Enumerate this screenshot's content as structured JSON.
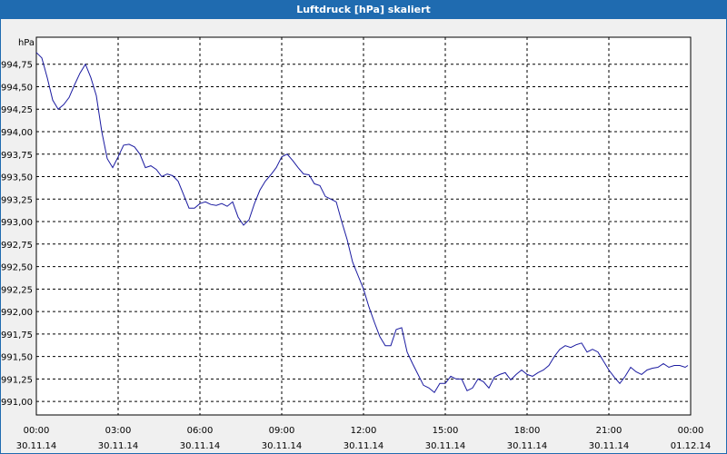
{
  "window": {
    "title": "Luftdruck [hPa] skaliert"
  },
  "colors": {
    "titlebar": "#1f6bb0",
    "line": "#1a1aa0",
    "grid": "#000000",
    "background": "#ffffff"
  },
  "chart_data": {
    "type": "line",
    "title": "Luftdruck [hPa] skaliert",
    "ylabel": "hPa",
    "xlabel": "",
    "grid": true,
    "ylim": [
      990.85,
      995.05
    ],
    "yticks": [
      991.0,
      991.25,
      991.5,
      991.75,
      992.0,
      992.25,
      992.5,
      992.75,
      993.0,
      993.25,
      993.5,
      993.75,
      994.0,
      994.25,
      994.5,
      994.75
    ],
    "ytick_labels": [
      "991,00",
      "991,25",
      "991,50",
      "991,75",
      "992,00",
      "992,25",
      "992,50",
      "992,75",
      "993,00",
      "993,25",
      "993,50",
      "993,75",
      "994,00",
      "994,25",
      "994,50",
      "994,75"
    ],
    "xlim": [
      0,
      24
    ],
    "xticks": [
      0,
      3,
      6,
      9,
      12,
      15,
      18,
      21,
      24
    ],
    "xtick_labels": [
      {
        "time": "00:00",
        "date": "30.11.14"
      },
      {
        "time": "03:00",
        "date": "30.11.14"
      },
      {
        "time": "06:00",
        "date": "30.11.14"
      },
      {
        "time": "09:00",
        "date": "30.11.14"
      },
      {
        "time": "12:00",
        "date": "30.11.14"
      },
      {
        "time": "15:00",
        "date": "30.11.14"
      },
      {
        "time": "18:00",
        "date": "30.11.14"
      },
      {
        "time": "21:00",
        "date": "30.11.14"
      },
      {
        "time": "00:00",
        "date": "01.12.14"
      }
    ],
    "series": [
      {
        "x": [
          0,
          0.2,
          0.4,
          0.6,
          0.8,
          1.0,
          1.2,
          1.4,
          1.6,
          1.8,
          2.0,
          2.2,
          2.4,
          2.6,
          2.8,
          3.0,
          3.2,
          3.4,
          3.6,
          3.8,
          4.0,
          4.2,
          4.4,
          4.6,
          4.8,
          5.0,
          5.2,
          5.4,
          5.6,
          5.8,
          6.0,
          6.2,
          6.4,
          6.6,
          6.8,
          7.0,
          7.2,
          7.4,
          7.6,
          7.8,
          8.0,
          8.2,
          8.4,
          8.6,
          8.8,
          9.0,
          9.2,
          9.4,
          9.6,
          9.8,
          10.0,
          10.2,
          10.4,
          10.6,
          10.8,
          11.0,
          11.2,
          11.4,
          11.6,
          11.8,
          12.0,
          12.2,
          12.4,
          12.6,
          12.8,
          13.0,
          13.2,
          13.4,
          13.6,
          13.8,
          14.0,
          14.2,
          14.4,
          14.6,
          14.8,
          15.0,
          15.2,
          15.4,
          15.6,
          15.8,
          16.0,
          16.2,
          16.4,
          16.6,
          16.8,
          17.0,
          17.2,
          17.4,
          17.6,
          17.8,
          18.0,
          18.2,
          18.4,
          18.6,
          18.8,
          19.0,
          19.2,
          19.4,
          19.6,
          19.8,
          20.0,
          20.2,
          20.4,
          20.6,
          20.8,
          21.0,
          21.2,
          21.4,
          21.6,
          21.8,
          22.0,
          22.2,
          22.4,
          22.6,
          22.8,
          23.0,
          23.2,
          23.4,
          23.6,
          23.8,
          23.9
        ],
        "values": [
          994.88,
          994.82,
          994.6,
          994.35,
          994.25,
          994.3,
          994.38,
          994.52,
          994.65,
          994.75,
          994.6,
          994.4,
          994.0,
          993.7,
          993.6,
          993.72,
          993.85,
          993.86,
          993.83,
          993.75,
          993.6,
          993.62,
          993.58,
          993.5,
          993.53,
          993.51,
          993.45,
          993.3,
          993.15,
          993.15,
          993.2,
          993.22,
          993.19,
          993.18,
          993.2,
          993.17,
          993.22,
          993.05,
          992.96,
          993.02,
          993.2,
          993.35,
          993.45,
          993.52,
          993.6,
          993.72,
          993.75,
          993.68,
          993.6,
          993.53,
          993.52,
          993.42,
          993.4,
          993.28,
          993.25,
          993.22,
          993.0,
          992.8,
          992.55,
          992.4,
          992.25,
          992.05,
          991.88,
          991.72,
          991.62,
          991.62,
          991.8,
          991.82,
          991.55,
          991.42,
          991.3,
          991.18,
          991.15,
          991.1,
          991.2,
          991.2,
          991.28,
          991.25,
          991.25,
          991.12,
          991.15,
          991.25,
          991.22,
          991.15,
          991.27,
          991.3,
          991.32,
          991.24,
          991.3,
          991.35,
          991.3,
          991.28,
          991.32,
          991.35,
          991.4,
          991.5,
          991.58,
          991.62,
          991.6,
          991.63,
          991.65,
          991.55,
          991.58,
          991.55,
          991.45,
          991.35,
          991.27,
          991.2,
          991.28,
          991.38,
          991.33,
          991.3,
          991.35,
          991.37,
          991.38,
          991.42,
          991.38,
          991.4,
          991.4,
          991.38,
          991.4
        ]
      }
    ]
  }
}
